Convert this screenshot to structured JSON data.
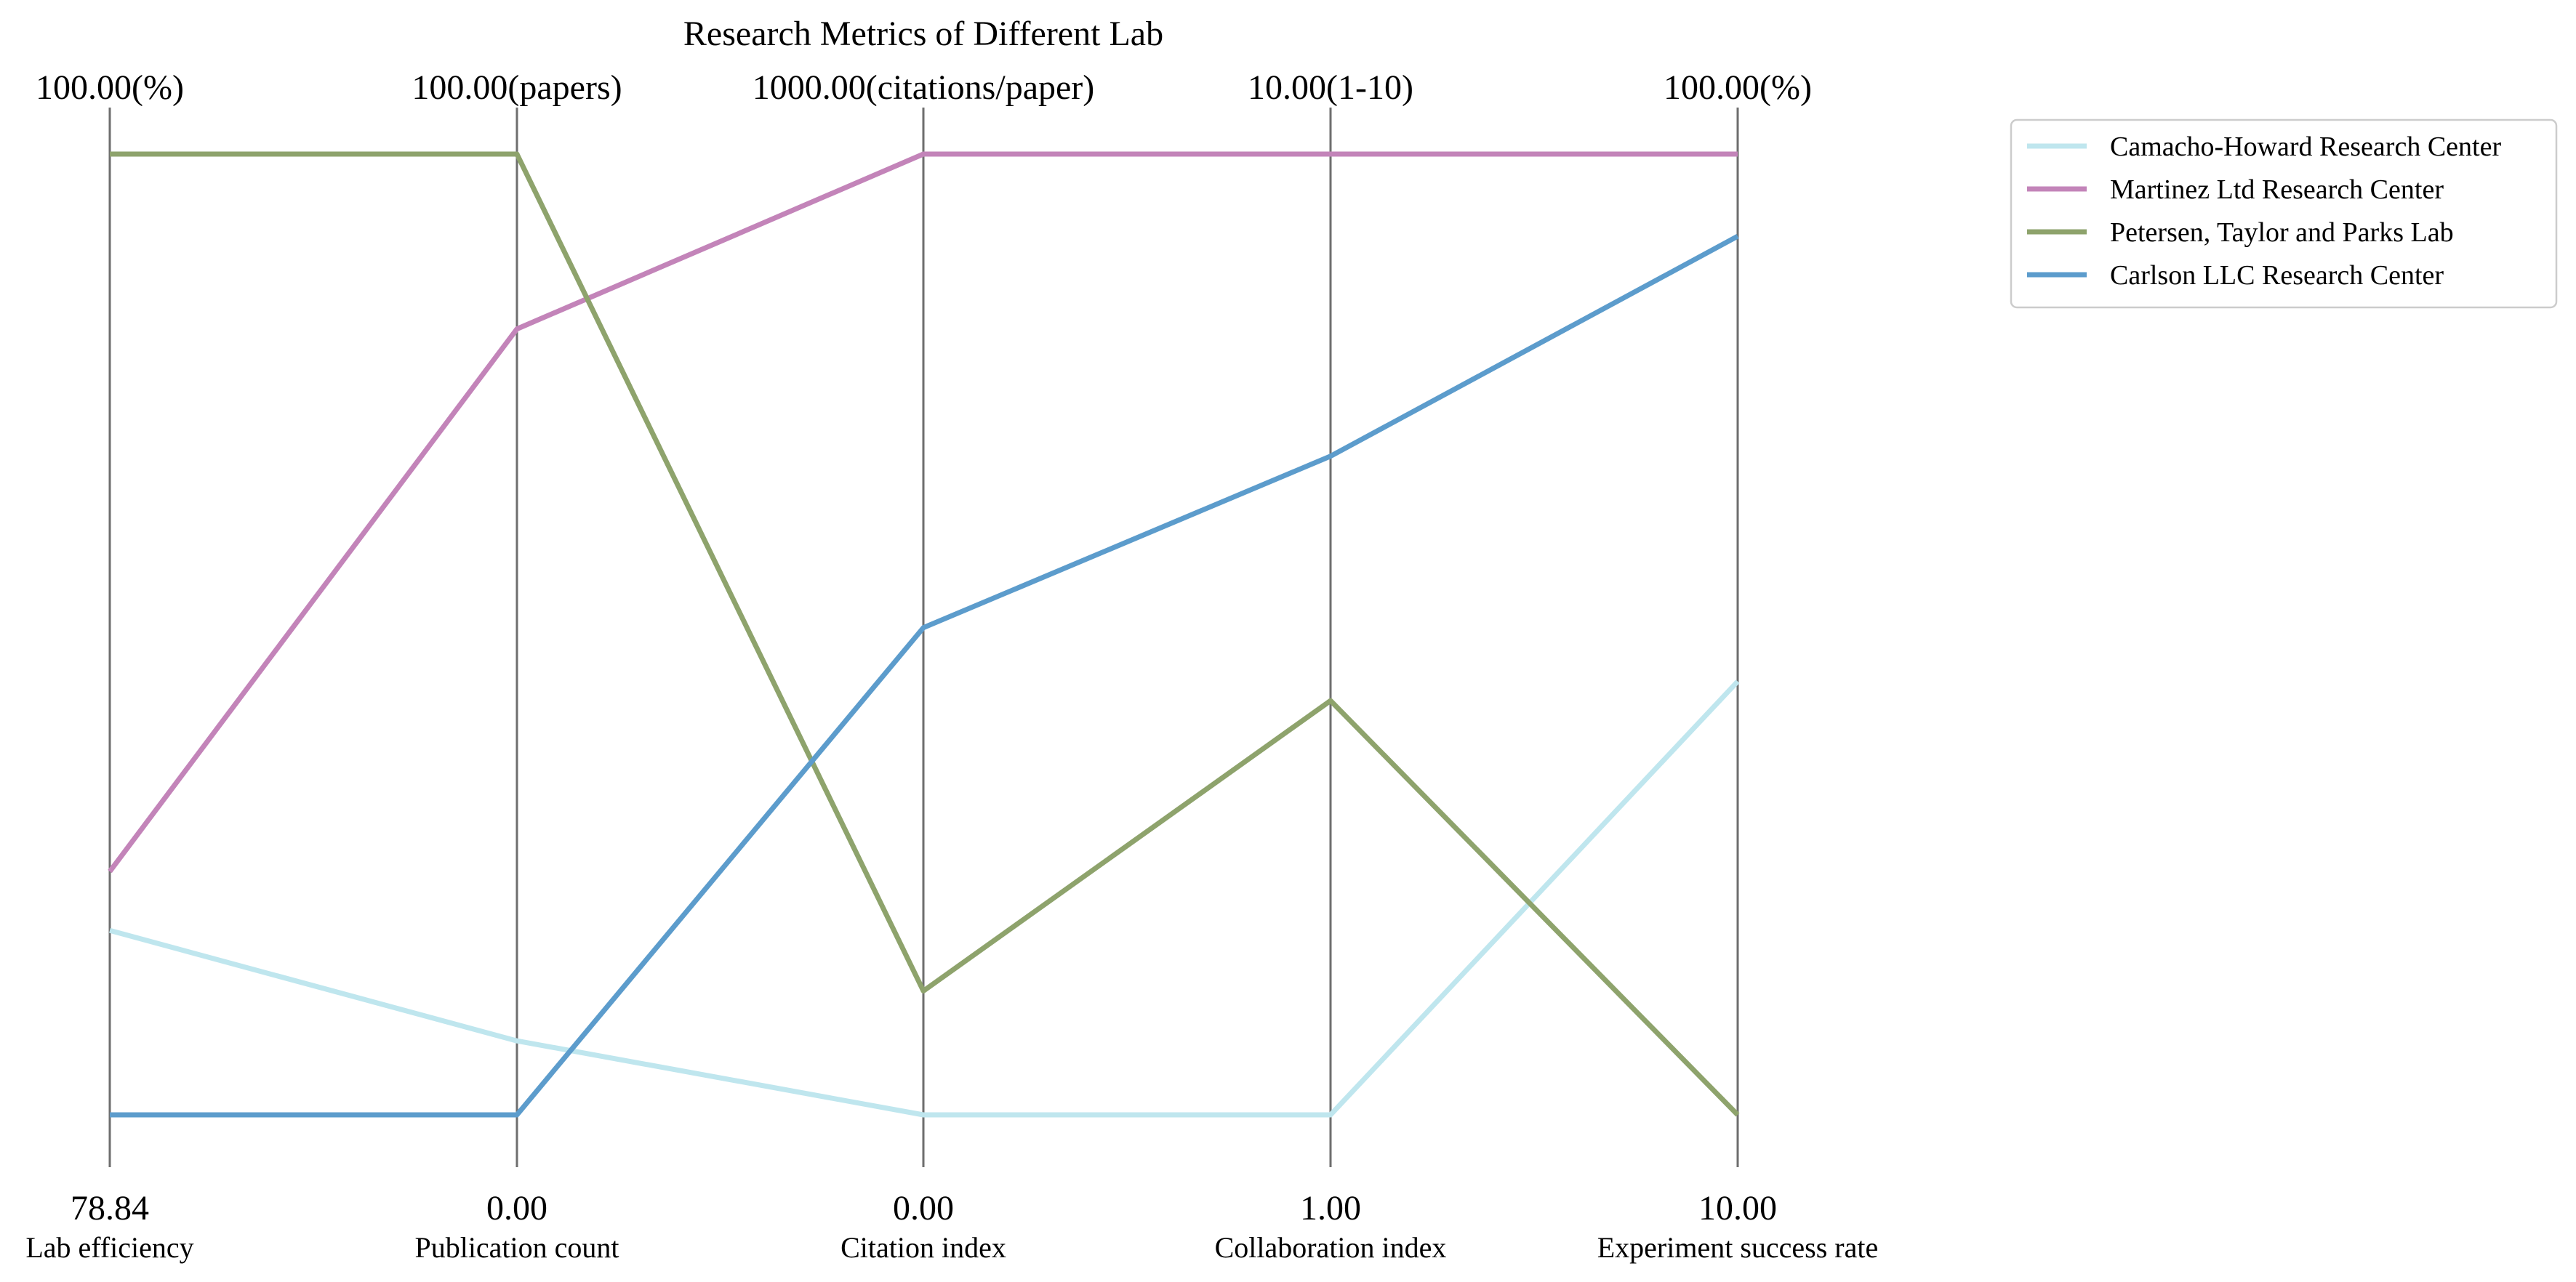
{
  "chart_data": {
    "type": "parallel-coordinates",
    "title": "Research Metrics of Different Lab",
    "axes": [
      {
        "name": "Lab efficiency",
        "min": 78.84,
        "max": 100.0,
        "min_label": "78.84",
        "max_label": "100.00(%)"
      },
      {
        "name": "Publication count",
        "min": 0.0,
        "max": 100.0,
        "min_label": "0.00",
        "max_label": "100.00(papers)"
      },
      {
        "name": "Citation index",
        "min": 0.0,
        "max": 1000.0,
        "min_label": "0.00",
        "max_label": "1000.00(citations/paper)"
      },
      {
        "name": "Collaboration index",
        "min": 1.0,
        "max": 10.0,
        "min_label": "1.00",
        "max_label": "10.00(1-10)"
      },
      {
        "name": "Experiment success rate",
        "min": 10.0,
        "max": 100.0,
        "min_label": "10.00",
        "max_label": "100.00(%)"
      }
    ],
    "series": [
      {
        "name": "Camacho-Howard  Research Center",
        "color": "#bfe6ee",
        "values": [
          82.9,
          7.7,
          0.0,
          1.0,
          50.6
        ]
      },
      {
        "name": "Martinez Ltd  Research Center",
        "color": "#c384b9",
        "values": [
          84.2,
          81.8,
          1000.0,
          10.0,
          100.0
        ]
      },
      {
        "name": "Petersen, Taylor and Parks  Lab",
        "color": "#8ea36c",
        "values": [
          100.0,
          100.0,
          129.0,
          4.88,
          10.0
        ]
      },
      {
        "name": "Carlson LLC  Research Center",
        "color": "#5c9ccc",
        "values": [
          78.84,
          0.0,
          507.0,
          7.17,
          92.3
        ]
      }
    ],
    "legend": {
      "position": "top-right"
    },
    "grid": false
  }
}
